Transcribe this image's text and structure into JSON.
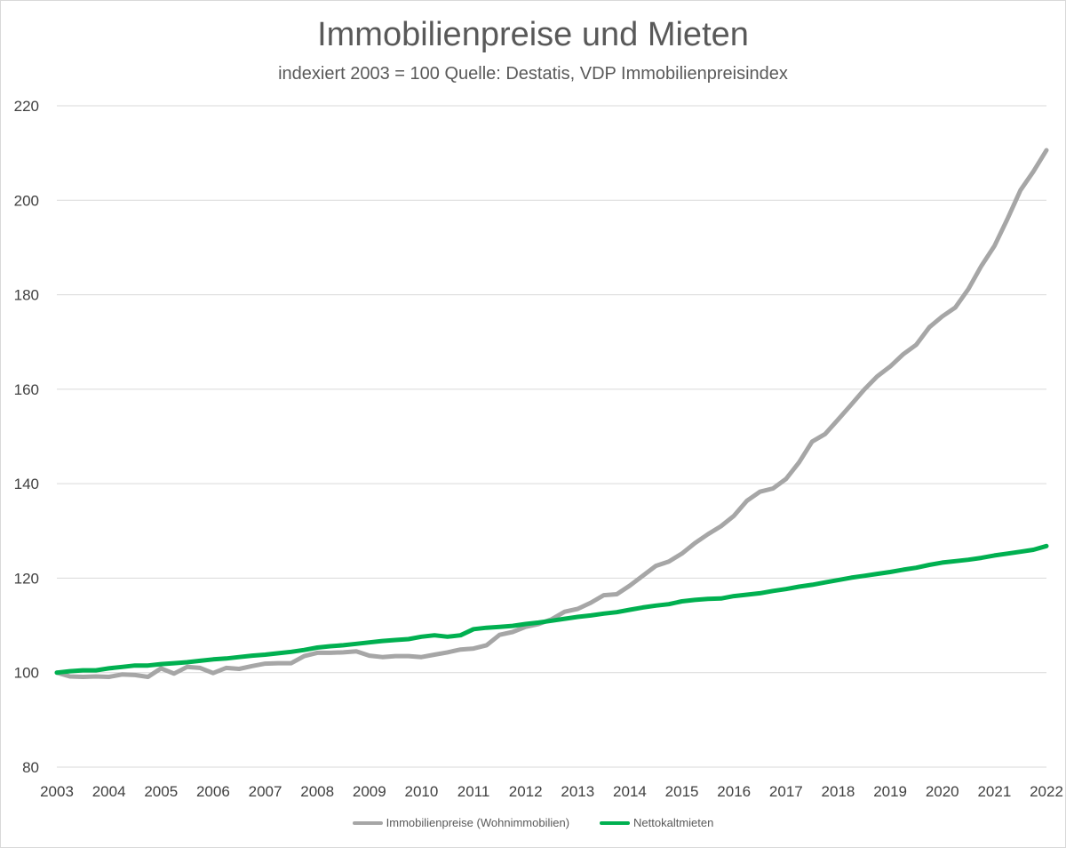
{
  "chart_data": {
    "type": "line",
    "title": "Immobilienpreise und Mieten",
    "subtitle": "indexiert 2003 = 100 Quelle: Destatis, VDP Immobilienpreisindex",
    "xlabel": "",
    "ylabel": "",
    "xlim": [
      2003,
      2022
    ],
    "ylim": [
      80,
      220
    ],
    "x_ticks": [
      "2003",
      "2004",
      "2005",
      "2006",
      "2007",
      "2008",
      "2009",
      "2010",
      "2011",
      "2012",
      "2013",
      "2014",
      "2015",
      "2016",
      "2017",
      "2018",
      "2019",
      "2020",
      "2021",
      "2022"
    ],
    "y_ticks": [
      "80",
      "100",
      "120",
      "140",
      "160",
      "180",
      "200",
      "220"
    ],
    "grid": true,
    "legend_position": "bottom",
    "series": [
      {
        "name": "Immobilienpreise (Wohnimmobilien)",
        "color": "#a6a6a6",
        "points": [
          [
            2003.0,
            100.0
          ],
          [
            2003.25,
            99.2
          ],
          [
            2003.5,
            99.1
          ],
          [
            2003.75,
            99.2
          ],
          [
            2004.0,
            99.1
          ],
          [
            2004.25,
            99.6
          ],
          [
            2004.5,
            99.5
          ],
          [
            2004.75,
            99.1
          ],
          [
            2005.0,
            100.9
          ],
          [
            2005.25,
            99.8
          ],
          [
            2005.5,
            101.2
          ],
          [
            2005.75,
            101.0
          ],
          [
            2006.0,
            99.9
          ],
          [
            2006.25,
            101.0
          ],
          [
            2006.5,
            100.8
          ],
          [
            2006.75,
            101.4
          ],
          [
            2007.0,
            101.9
          ],
          [
            2007.25,
            102.0
          ],
          [
            2007.5,
            102.0
          ],
          [
            2007.75,
            103.5
          ],
          [
            2008.0,
            104.2
          ],
          [
            2008.25,
            104.2
          ],
          [
            2008.5,
            104.3
          ],
          [
            2008.75,
            104.5
          ],
          [
            2009.0,
            103.6
          ],
          [
            2009.25,
            103.3
          ],
          [
            2009.5,
            103.5
          ],
          [
            2009.75,
            103.5
          ],
          [
            2010.0,
            103.3
          ],
          [
            2010.25,
            103.8
          ],
          [
            2010.5,
            104.3
          ],
          [
            2010.75,
            104.9
          ],
          [
            2011.0,
            105.1
          ],
          [
            2011.25,
            105.8
          ],
          [
            2011.5,
            108.0
          ],
          [
            2011.75,
            108.6
          ],
          [
            2012.0,
            109.7
          ],
          [
            2012.25,
            110.3
          ],
          [
            2012.5,
            111.3
          ],
          [
            2012.75,
            112.9
          ],
          [
            2013.0,
            113.5
          ],
          [
            2013.25,
            114.8
          ],
          [
            2013.5,
            116.4
          ],
          [
            2013.75,
            116.6
          ],
          [
            2014.0,
            118.4
          ],
          [
            2014.25,
            120.5
          ],
          [
            2014.5,
            122.6
          ],
          [
            2014.75,
            123.5
          ],
          [
            2015.0,
            125.2
          ],
          [
            2015.25,
            127.4
          ],
          [
            2015.5,
            129.3
          ],
          [
            2015.75,
            131.0
          ],
          [
            2016.0,
            133.2
          ],
          [
            2016.25,
            136.4
          ],
          [
            2016.5,
            138.3
          ],
          [
            2016.75,
            139.0
          ],
          [
            2017.0,
            141.0
          ],
          [
            2017.25,
            144.5
          ],
          [
            2017.5,
            148.9
          ],
          [
            2017.75,
            150.5
          ],
          [
            2018.0,
            153.6
          ],
          [
            2018.25,
            156.7
          ],
          [
            2018.5,
            159.9
          ],
          [
            2018.75,
            162.7
          ],
          [
            2019.0,
            164.8
          ],
          [
            2019.25,
            167.4
          ],
          [
            2019.5,
            169.4
          ],
          [
            2019.75,
            173.1
          ],
          [
            2020.0,
            175.4
          ],
          [
            2020.25,
            177.3
          ],
          [
            2020.5,
            181.2
          ],
          [
            2020.75,
            186.1
          ],
          [
            2021.0,
            190.3
          ],
          [
            2021.25,
            196.0
          ],
          [
            2021.5,
            202.1
          ],
          [
            2021.75,
            206.1
          ],
          [
            2022.0,
            210.6
          ]
        ]
      },
      {
        "name": "Nettokaltmieten",
        "color": "#00b050",
        "points": [
          [
            2003.0,
            100.0
          ],
          [
            2003.25,
            100.3
          ],
          [
            2003.5,
            100.5
          ],
          [
            2003.75,
            100.5
          ],
          [
            2004.0,
            100.9
          ],
          [
            2004.25,
            101.2
          ],
          [
            2004.5,
            101.5
          ],
          [
            2004.75,
            101.5
          ],
          [
            2005.0,
            101.8
          ],
          [
            2005.25,
            102.0
          ],
          [
            2005.5,
            102.2
          ],
          [
            2005.75,
            102.5
          ],
          [
            2006.0,
            102.8
          ],
          [
            2006.25,
            103.0
          ],
          [
            2006.5,
            103.3
          ],
          [
            2006.75,
            103.6
          ],
          [
            2007.0,
            103.8
          ],
          [
            2007.25,
            104.1
          ],
          [
            2007.5,
            104.4
          ],
          [
            2007.75,
            104.8
          ],
          [
            2008.0,
            105.3
          ],
          [
            2008.25,
            105.6
          ],
          [
            2008.5,
            105.8
          ],
          [
            2008.75,
            106.1
          ],
          [
            2009.0,
            106.4
          ],
          [
            2009.25,
            106.7
          ],
          [
            2009.5,
            106.9
          ],
          [
            2009.75,
            107.1
          ],
          [
            2010.0,
            107.6
          ],
          [
            2010.25,
            107.9
          ],
          [
            2010.5,
            107.6
          ],
          [
            2010.75,
            107.9
          ],
          [
            2011.0,
            109.2
          ],
          [
            2011.25,
            109.5
          ],
          [
            2011.5,
            109.7
          ],
          [
            2011.75,
            109.9
          ],
          [
            2012.0,
            110.3
          ],
          [
            2012.25,
            110.6
          ],
          [
            2012.5,
            111.0
          ],
          [
            2012.75,
            111.4
          ],
          [
            2013.0,
            111.8
          ],
          [
            2013.25,
            112.1
          ],
          [
            2013.5,
            112.5
          ],
          [
            2013.75,
            112.8
          ],
          [
            2014.0,
            113.3
          ],
          [
            2014.25,
            113.8
          ],
          [
            2014.5,
            114.2
          ],
          [
            2014.75,
            114.5
          ],
          [
            2015.0,
            115.1
          ],
          [
            2015.25,
            115.4
          ],
          [
            2015.5,
            115.6
          ],
          [
            2015.75,
            115.7
          ],
          [
            2016.0,
            116.2
          ],
          [
            2016.25,
            116.5
          ],
          [
            2016.5,
            116.8
          ],
          [
            2016.75,
            117.3
          ],
          [
            2017.0,
            117.7
          ],
          [
            2017.25,
            118.2
          ],
          [
            2017.5,
            118.6
          ],
          [
            2017.75,
            119.1
          ],
          [
            2018.0,
            119.6
          ],
          [
            2018.25,
            120.1
          ],
          [
            2018.5,
            120.5
          ],
          [
            2018.75,
            120.9
          ],
          [
            2019.0,
            121.3
          ],
          [
            2019.25,
            121.8
          ],
          [
            2019.5,
            122.2
          ],
          [
            2019.75,
            122.8
          ],
          [
            2020.0,
            123.3
          ],
          [
            2020.25,
            123.6
          ],
          [
            2020.5,
            123.9
          ],
          [
            2020.75,
            124.3
          ],
          [
            2021.0,
            124.8
          ],
          [
            2021.25,
            125.2
          ],
          [
            2021.5,
            125.6
          ],
          [
            2021.75,
            126.0
          ],
          [
            2022.0,
            126.8
          ]
        ]
      }
    ]
  }
}
